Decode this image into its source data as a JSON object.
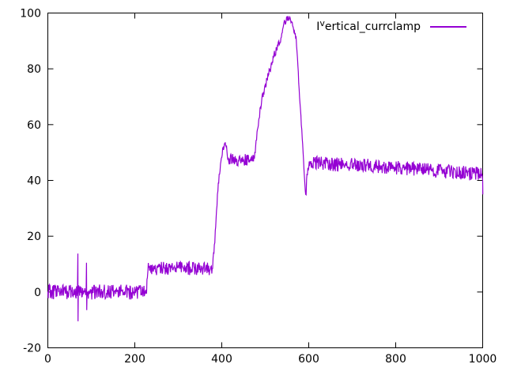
{
  "window": {
    "background": "#ffffff"
  },
  "chart_data": {
    "type": "line",
    "title": "",
    "grid": false,
    "legend_position": "top-right-inside",
    "legend": {
      "prefix": "I",
      "superscript": "v",
      "rest": "ertical_currclamp",
      "display": "Iᵛertical_currclamp"
    },
    "axes": {
      "x": {
        "min": 0,
        "max": 1000,
        "ticks": [
          0,
          200,
          400,
          600,
          800,
          1000
        ]
      },
      "y": {
        "min": -20,
        "max": 100,
        "ticks": [
          -20,
          0,
          20,
          40,
          60,
          80,
          100
        ]
      }
    },
    "line_color": "#9400d3",
    "axis_color": "#000000",
    "series": [
      {
        "name": "Iᵛertical_currclamp",
        "color": "#9400d3",
        "mean_anchors": [
          [
            0,
            0
          ],
          [
            226,
            0
          ],
          [
            231,
            8.2
          ],
          [
            300,
            8.6
          ],
          [
            378,
            8.2
          ],
          [
            383,
            16
          ],
          [
            388,
            30
          ],
          [
            394,
            42
          ],
          [
            400,
            49
          ],
          [
            405,
            52.5
          ],
          [
            408,
            54
          ],
          [
            411,
            50.5
          ],
          [
            416,
            48
          ],
          [
            430,
            47.2
          ],
          [
            464,
            47.6
          ],
          [
            473,
            48.8
          ],
          [
            476,
            49.5
          ],
          [
            482,
            58
          ],
          [
            489,
            66.5
          ],
          [
            500,
            74
          ],
          [
            511,
            80
          ],
          [
            521,
            85
          ],
          [
            531,
            89.5
          ],
          [
            539,
            92.5
          ],
          [
            545,
            96.5
          ],
          [
            549,
            98.3
          ],
          [
            557,
            98.2
          ],
          [
            562,
            96
          ],
          [
            566,
            94
          ],
          [
            571,
            91
          ],
          [
            593,
            34.5
          ],
          [
            596,
            41
          ],
          [
            600,
            45
          ],
          [
            606,
            46.6
          ],
          [
            650,
            45.8
          ],
          [
            750,
            45.2
          ],
          [
            850,
            44
          ],
          [
            930,
            43
          ],
          [
            1000,
            42.2
          ]
        ],
        "noise_segments": [
          {
            "from": 0,
            "to": 228,
            "amp": 2.7
          },
          {
            "from": 228,
            "to": 380,
            "amp": 2.4
          },
          {
            "from": 380,
            "to": 411,
            "amp": 1.2
          },
          {
            "from": 411,
            "to": 475,
            "amp": 2.2
          },
          {
            "from": 475,
            "to": 545,
            "amp": 1.5
          },
          {
            "from": 545,
            "to": 560,
            "amp": 1.1
          },
          {
            "from": 560,
            "to": 594,
            "amp": 0.9
          },
          {
            "from": 594,
            "to": 1001,
            "amp": 2.5
          }
        ],
        "spikes": [
          {
            "x": 69,
            "up": 13.8,
            "down": -10.5
          },
          {
            "x": 89,
            "up": 10.5,
            "down": -6.5
          },
          {
            "x": 1000,
            "up": 40,
            "down": 35
          }
        ]
      }
    ]
  }
}
